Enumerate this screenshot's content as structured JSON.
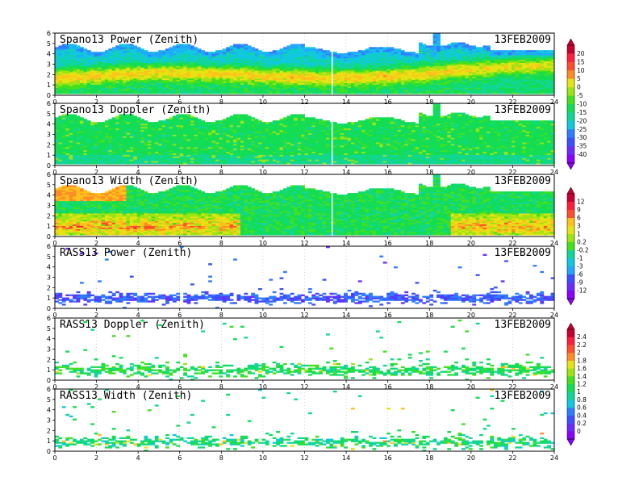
{
  "colors": {
    "scale": [
      "#8b00ff",
      "#6a2cff",
      "#3c50ff",
      "#2f7cff",
      "#22a6ff",
      "#10c8e0",
      "#11d69a",
      "#13dd55",
      "#43e01e",
      "#9ce414",
      "#e6e312",
      "#ffc21a",
      "#ff8c26",
      "#ff4e2d",
      "#ff1e3c",
      "#c80032"
    ]
  },
  "chart_data": [
    {
      "type": "heatmap",
      "title": "Spano13 Power (Zenith)",
      "date": "13FEB2009",
      "x_ticks": [
        "0",
        "2",
        "4",
        "6",
        "8",
        "10",
        "12",
        "14",
        "16",
        "18",
        "20",
        "22",
        "24"
      ],
      "y_ticks": [
        "0",
        "1",
        "2",
        "3",
        "4",
        "5",
        "6"
      ],
      "xlim": [
        0,
        24
      ],
      "ylim": [
        0,
        6
      ],
      "field": "spano_power",
      "colorbar": 1
    },
    {
      "type": "heatmap",
      "title": "Spano13 Doppler (Zenith)",
      "date": "13FEB2009",
      "x_ticks": [
        "0",
        "2",
        "4",
        "6",
        "8",
        "10",
        "12",
        "14",
        "16",
        "18",
        "20",
        "22",
        "24"
      ],
      "y_ticks": [
        "0",
        "1",
        "2",
        "3",
        "4",
        "5",
        "6"
      ],
      "xlim": [
        0,
        24
      ],
      "ylim": [
        0,
        6
      ],
      "field": "spano_doppler",
      "colorbar": 1
    },
    {
      "type": "heatmap",
      "title": "Spano13 Width (Zenith)",
      "date": "13FEB2009",
      "x_ticks": [
        "0",
        "2",
        "4",
        "6",
        "8",
        "10",
        "12",
        "14",
        "16",
        "18",
        "20",
        "22",
        "24"
      ],
      "y_ticks": [
        "0",
        "1",
        "2",
        "3",
        "4",
        "5",
        "6"
      ],
      "xlim": [
        0,
        24
      ],
      "ylim": [
        0,
        6
      ],
      "field": "spano_width",
      "colorbar": 2
    },
    {
      "type": "heatmap",
      "title": "RASS13 Power (Zenith)",
      "date": "13FEB2009",
      "x_ticks": [
        "0",
        "2",
        "4",
        "6",
        "8",
        "10",
        "12",
        "14",
        "16",
        "18",
        "20",
        "22",
        "24"
      ],
      "y_ticks": [
        "0",
        "1",
        "2",
        "3",
        "4",
        "5",
        "6"
      ],
      "xlim": [
        0,
        24
      ],
      "ylim": [
        0,
        6
      ],
      "field": "rass_power",
      "colorbar": 2
    },
    {
      "type": "heatmap",
      "title": "RASS13 Doppler (Zenith)",
      "date": "13FEB2009",
      "x_ticks": [
        "0",
        "2",
        "4",
        "6",
        "8",
        "10",
        "12",
        "14",
        "16",
        "18",
        "20",
        "22",
        "24"
      ],
      "y_ticks": [
        "0",
        "1",
        "2",
        "3",
        "4",
        "5",
        "6"
      ],
      "xlim": [
        0,
        24
      ],
      "ylim": [
        0,
        6
      ],
      "field": "rass_doppler",
      "colorbar": 3
    },
    {
      "type": "heatmap",
      "title": "RASS13 Width (Zenith)",
      "date": "13FEB2009",
      "x_ticks": [
        "0",
        "2",
        "4",
        "6",
        "8",
        "10",
        "12",
        "14",
        "16",
        "18",
        "20",
        "22",
        "24"
      ],
      "y_ticks": [
        "0",
        "1",
        "2",
        "3",
        "4",
        "5",
        "6"
      ],
      "xlim": [
        0,
        24
      ],
      "ylim": [
        0,
        6
      ],
      "field": "rass_width",
      "colorbar": 3
    }
  ],
  "colorbars": [
    {
      "id": 1,
      "labels": [
        "20",
        "15",
        "10",
        "5",
        "0",
        "-5",
        "-10",
        "-15",
        "-20",
        "-25",
        "-30",
        "-35",
        "-40"
      ]
    },
    {
      "id": 2,
      "labels": [
        "12",
        "9",
        "6",
        "3",
        "1",
        "0.2",
        "-0.2",
        "-1",
        "-3",
        "-6",
        "-9",
        "-12"
      ]
    },
    {
      "id": 3,
      "labels": [
        "2.4",
        "2.2",
        "2",
        "1.8",
        "1.6",
        "1.4",
        "1.2",
        "1",
        "0.8",
        "0.6",
        "0.4",
        "0.2",
        "0"
      ]
    }
  ]
}
